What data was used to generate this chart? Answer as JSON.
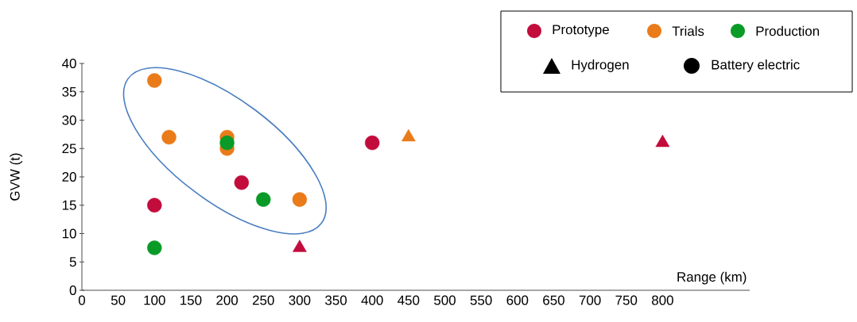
{
  "chart_data": {
    "type": "scatter",
    "xlabel": "Range (km)",
    "ylabel": "GVW (t)",
    "xlim": [
      0,
      920
    ],
    "ylim": [
      0,
      40
    ],
    "xticks": [
      0,
      50,
      100,
      150,
      200,
      250,
      300,
      350,
      400,
      450,
      500,
      550,
      600,
      650,
      700,
      750,
      800
    ],
    "yticks": [
      0,
      5,
      10,
      15,
      20,
      25,
      30,
      35,
      40
    ],
    "grid": false,
    "legend": "top right",
    "annotations": [
      "Hydrogen",
      "Battery electric"
    ],
    "series": [
      {
        "name": "Prototype",
        "color": "#c20c3c",
        "marker": "circle",
        "x": [
          100,
          220,
          400
        ],
        "values": [
          15,
          19,
          26
        ]
      },
      {
        "name": "Trials",
        "color": "#ea7b1a",
        "marker": "circle",
        "x": [
          100,
          120,
          200,
          200,
          300
        ],
        "values": [
          37,
          27,
          27,
          25,
          16
        ]
      },
      {
        "name": "Production",
        "color": "#0a9a28",
        "marker": "circle",
        "x": [
          100,
          200,
          250
        ],
        "values": [
          7.5,
          26,
          16
        ]
      },
      {
        "color": "#c20c3c",
        "marker": "triangle",
        "x": [
          300,
          800
        ],
        "values": [
          7.5,
          26
        ]
      },
      {
        "color": "#ea7b1a",
        "marker": "triangle",
        "x": [
          450
        ],
        "values": [
          27
        ]
      }
    ]
  }
}
